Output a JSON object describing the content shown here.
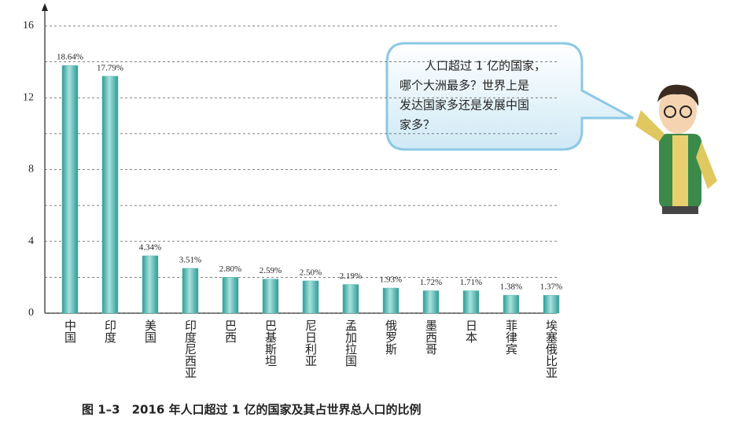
{
  "chart_data": {
    "type": "bar",
    "caption": "图 1–3　2016 年人口超过 1 亿的国家及其占世界总人口的比例",
    "categories": [
      "中国",
      "印度",
      "美国",
      "印度尼西亚",
      "巴西",
      "巴基斯坦",
      "尼日利亚",
      "孟加拉国",
      "俄罗斯",
      "墨西哥",
      "日本",
      "菲律宾",
      "埃塞俄比亚"
    ],
    "values": [
      13.8,
      13.2,
      3.2,
      2.5,
      2.0,
      1.9,
      1.8,
      1.6,
      1.4,
      1.25,
      1.25,
      1.0,
      1.0
    ],
    "share_labels": [
      "18.64%",
      "17.79%",
      "4.34%",
      "3.51%",
      "2.80%",
      "2.59%",
      "2.50%",
      "2.19%",
      "1.93%",
      "1.72%",
      "1.71%",
      "1.38%",
      "1.37%"
    ],
    "color": "#5bbdb8",
    "ylim": [
      0,
      16
    ],
    "yticks": [
      0,
      4,
      8,
      12,
      16
    ],
    "minor_yticks": [
      2,
      6,
      10,
      14
    ],
    "grid": true,
    "bubble_lines": [
      "人口超过 1 亿的国家，",
      "哪个大洲最多？世界上是",
      "发达国家多还是发展中国",
      "家多？"
    ]
  }
}
